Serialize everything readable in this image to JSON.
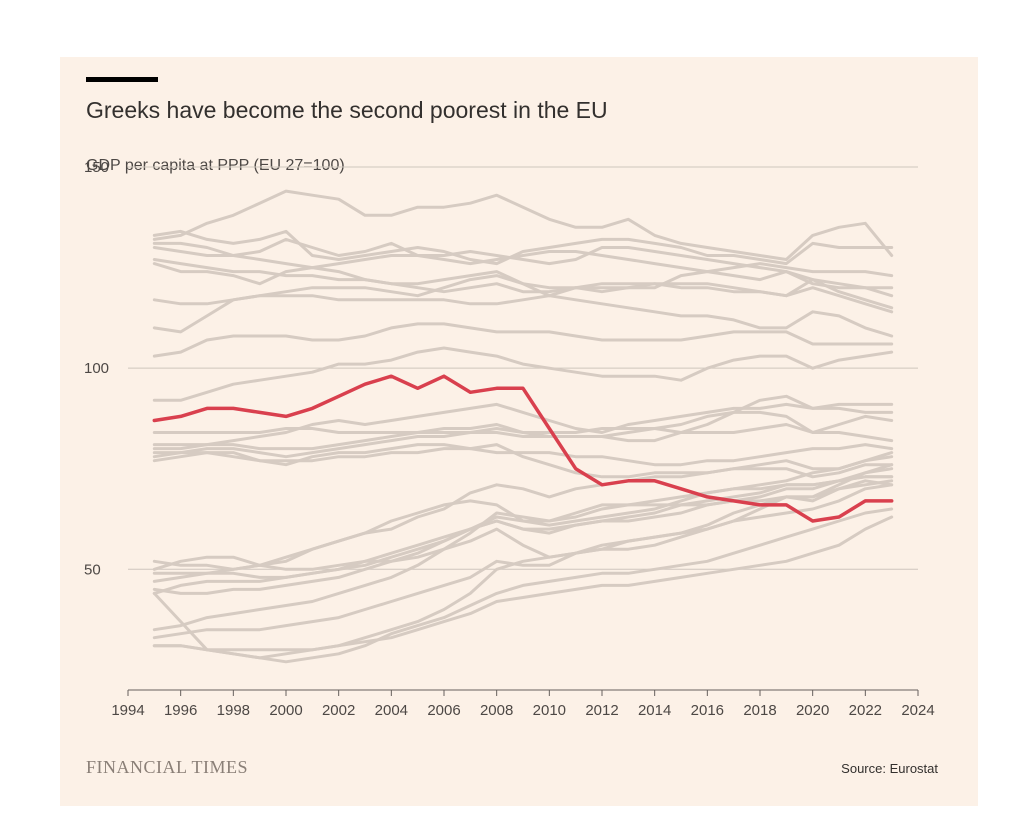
{
  "title": "Greeks have become the second poorest in the EU",
  "subtitle": "GDP per capita at PPP (EU 27=100)",
  "brand": "FINANCIAL TIMES",
  "source": "Source: Eurostat",
  "colors": {
    "background": "#fcf1e7",
    "highlight": "#d9404e",
    "others": "#d6cbc2",
    "grid": "#cec6bd",
    "accent_bar": "#000000"
  },
  "chart_data": {
    "type": "line",
    "title": "Greeks have become the second poorest in the EU",
    "subtitle": "GDP per capita at PPP (EU 27=100)",
    "xlabel": "",
    "ylabel": "",
    "xlim": [
      1994,
      2024
    ],
    "ylim": [
      20,
      150
    ],
    "x_ticks": [
      1994,
      1996,
      1998,
      2000,
      2002,
      2004,
      2006,
      2008,
      2010,
      2012,
      2014,
      2016,
      2018,
      2020,
      2022,
      2024
    ],
    "y_ticks": [
      50,
      100,
      150
    ],
    "grid": "horizontal",
    "legend": "none",
    "x": [
      1995,
      1996,
      1997,
      1998,
      1999,
      2000,
      2001,
      2002,
      2003,
      2004,
      2005,
      2006,
      2007,
      2008,
      2009,
      2010,
      2011,
      2012,
      2013,
      2014,
      2015,
      2016,
      2017,
      2018,
      2019,
      2020,
      2021,
      2022,
      2023
    ],
    "highlight": {
      "values": [
        87,
        88,
        90,
        90,
        89,
        88,
        90,
        93,
        96,
        98,
        95,
        98,
        94,
        95,
        95,
        85,
        75,
        71,
        72,
        72,
        70,
        68,
        67,
        66,
        66,
        62,
        63,
        67,
        67
      ]
    },
    "series": [
      {
        "values": [
          132,
          133,
          136,
          138,
          141,
          144,
          143,
          142,
          138,
          138,
          140,
          140,
          141,
          143,
          140,
          137,
          135,
          135,
          137,
          133,
          131,
          130,
          129,
          128,
          127,
          133,
          135,
          136,
          128
        ]
      },
      {
        "values": [
          133,
          134,
          132,
          131,
          132,
          134,
          128,
          127,
          128,
          129,
          130,
          129,
          127,
          126,
          129,
          130,
          131,
          132,
          132,
          131,
          130,
          128,
          128,
          127,
          126,
          131,
          130,
          130,
          130
        ]
      },
      {
        "values": [
          131,
          131,
          130,
          128,
          129,
          132,
          130,
          128,
          129,
          131,
          128,
          127,
          126,
          127,
          128,
          129,
          129,
          128,
          127,
          126,
          125,
          124,
          123,
          122,
          124,
          122,
          119,
          117,
          115
        ]
      },
      {
        "values": [
          130,
          129,
          128,
          128,
          127,
          126,
          125,
          126,
          127,
          128,
          128,
          128,
          129,
          128,
          127,
          126,
          127,
          130,
          130,
          129,
          128,
          127,
          126,
          125,
          124,
          121,
          120,
          120,
          118
        ]
      },
      {
        "values": [
          127,
          126,
          125,
          124,
          124,
          123,
          123,
          122,
          122,
          121,
          121,
          122,
          123,
          124,
          121,
          120,
          120,
          119,
          120,
          121,
          120,
          120,
          119,
          119,
          118,
          120,
          118,
          116,
          114
        ]
      },
      {
        "values": [
          126,
          124,
          124,
          123,
          121,
          124,
          125,
          124,
          122,
          121,
          120,
          119,
          120,
          121,
          119,
          119,
          120,
          120,
          120,
          120,
          123,
          124,
          125,
          126,
          125,
          124,
          124,
          124,
          123
        ]
      },
      {
        "values": [
          117,
          116,
          116,
          117,
          118,
          119,
          120,
          120,
          120,
          119,
          118,
          120,
          122,
          123,
          121,
          118,
          120,
          121,
          121,
          121,
          121,
          121,
          120,
          119,
          118,
          122,
          121,
          120,
          120
        ]
      },
      {
        "values": [
          110,
          109,
          113,
          117,
          118,
          118,
          118,
          117,
          117,
          117,
          117,
          117,
          116,
          116,
          117,
          118,
          117,
          116,
          115,
          114,
          113,
          113,
          112,
          110,
          110,
          114,
          113,
          110,
          108
        ]
      },
      {
        "values": [
          103,
          104,
          107,
          108,
          108,
          108,
          107,
          107,
          108,
          110,
          111,
          111,
          110,
          109,
          109,
          109,
          108,
          107,
          107,
          107,
          107,
          108,
          109,
          109,
          109,
          106,
          106,
          106,
          106
        ]
      },
      {
        "values": [
          92,
          92,
          94,
          96,
          97,
          98,
          99,
          101,
          101,
          102,
          104,
          105,
          104,
          103,
          101,
          100,
          99,
          98,
          98,
          98,
          97,
          100,
          102,
          103,
          103,
          100,
          102,
          103,
          104
        ]
      },
      {
        "values": [
          84,
          84,
          84,
          84,
          84,
          85,
          85,
          84,
          84,
          84,
          84,
          84,
          84,
          84,
          83,
          83,
          83,
          83,
          82,
          82,
          84,
          86,
          89,
          92,
          93,
          90,
          91,
          91,
          91
        ]
      },
      {
        "values": [
          81,
          81,
          81,
          82,
          83,
          84,
          86,
          87,
          86,
          87,
          88,
          89,
          90,
          91,
          89,
          87,
          85,
          84,
          86,
          87,
          88,
          89,
          90,
          90,
          91,
          90,
          90,
          89,
          89
        ]
      },
      {
        "values": [
          80,
          80,
          81,
          81,
          80,
          80,
          80,
          81,
          82,
          83,
          84,
          85,
          85,
          86,
          84,
          83,
          83,
          83,
          84,
          85,
          86,
          88,
          89,
          89,
          88,
          84,
          86,
          88,
          87
        ]
      },
      {
        "values": [
          78,
          79,
          80,
          80,
          79,
          78,
          79,
          80,
          81,
          82,
          83,
          83,
          84,
          85,
          84,
          84,
          84,
          85,
          85,
          85,
          84,
          84,
          84,
          85,
          86,
          84,
          84,
          83,
          82
        ]
      },
      {
        "values": [
          77,
          78,
          79,
          79,
          77,
          76,
          78,
          79,
          79,
          80,
          81,
          81,
          80,
          79,
          79,
          79,
          78,
          78,
          77,
          76,
          76,
          77,
          77,
          78,
          79,
          80,
          80,
          81,
          80
        ]
      },
      {
        "values": [
          79,
          79,
          79,
          78,
          77,
          77,
          77,
          78,
          78,
          79,
          79,
          80,
          80,
          81,
          78,
          76,
          74,
          73,
          73,
          74,
          74,
          74,
          75,
          76,
          77,
          75,
          75,
          77,
          79
        ]
      },
      {
        "values": [
          52,
          51,
          51,
          50,
          51,
          52,
          55,
          57,
          59,
          60,
          63,
          65,
          69,
          71,
          70,
          68,
          70,
          71,
          72,
          73,
          73,
          74,
          75,
          75,
          75,
          73,
          74,
          76,
          76
        ]
      },
      {
        "values": [
          49,
          49,
          49,
          50,
          51,
          53,
          55,
          57,
          59,
          62,
          64,
          66,
          67,
          66,
          62,
          61,
          62,
          63,
          64,
          65,
          67,
          69,
          70,
          70,
          71,
          71,
          72,
          74,
          75
        ]
      },
      {
        "values": [
          47,
          48,
          49,
          49,
          48,
          48,
          49,
          50,
          51,
          53,
          55,
          57,
          60,
          62,
          60,
          59,
          61,
          62,
          63,
          64,
          66,
          67,
          68,
          69,
          71,
          71,
          72,
          73,
          73
        ]
      },
      {
        "values": [
          50,
          52,
          53,
          53,
          51,
          50,
          50,
          51,
          52,
          52,
          53,
          55,
          57,
          60,
          56,
          53,
          54,
          55,
          57,
          58,
          59,
          60,
          62,
          65,
          68,
          67,
          70,
          72,
          71
        ]
      },
      {
        "values": [
          44,
          46,
          47,
          47,
          47,
          48,
          49,
          50,
          52,
          54,
          56,
          58,
          60,
          62,
          60,
          60,
          61,
          62,
          62,
          63,
          64,
          66,
          67,
          67,
          68,
          68,
          70,
          71,
          72
        ]
      },
      {
        "values": [
          35,
          36,
          38,
          39,
          40,
          41,
          42,
          44,
          46,
          48,
          51,
          55,
          59,
          64,
          63,
          62,
          63,
          65,
          66,
          67,
          68,
          69,
          70,
          71,
          72,
          74,
          75,
          77,
          78
        ]
      },
      {
        "values": [
          45,
          44,
          44,
          45,
          45,
          46,
          47,
          48,
          50,
          52,
          54,
          57,
          60,
          63,
          62,
          62,
          64,
          66,
          66,
          66,
          66,
          66,
          67,
          68,
          70,
          70,
          72,
          73,
          73
        ]
      },
      {
        "values": [
          33,
          34,
          35,
          35,
          35,
          36,
          37,
          38,
          40,
          42,
          44,
          46,
          48,
          52,
          51,
          51,
          54,
          56,
          57,
          58,
          59,
          61,
          64,
          66,
          68,
          68,
          71,
          74,
          76
        ]
      },
      {
        "values": [
          44,
          37,
          30,
          29,
          28,
          27,
          28,
          29,
          31,
          34,
          36,
          38,
          41,
          44,
          46,
          47,
          48,
          49,
          49,
          50,
          51,
          52,
          54,
          56,
          58,
          60,
          62,
          64,
          65
        ]
      },
      {
        "values": [
          31,
          31,
          30,
          30,
          30,
          30,
          30,
          31,
          32,
          33,
          35,
          37,
          39,
          42,
          43,
          44,
          45,
          46,
          46,
          47,
          48,
          49,
          50,
          51,
          52,
          54,
          56,
          60,
          63
        ]
      },
      {
        "values": [
          31,
          31,
          30,
          29,
          28,
          29,
          30,
          31,
          33,
          35,
          37,
          40,
          44,
          50,
          52,
          53,
          54,
          55,
          55,
          56,
          58,
          60,
          62,
          63,
          64,
          65,
          67,
          70,
          71
        ]
      }
    ]
  }
}
